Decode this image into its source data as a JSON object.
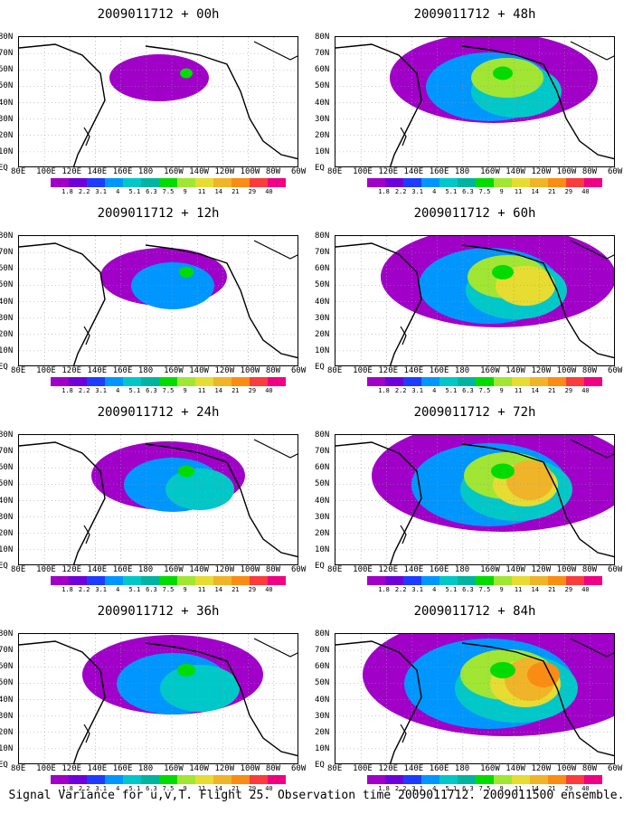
{
  "panels": [
    {
      "title": "2009011712 + 00h",
      "col": 0,
      "row": 0,
      "level": 1
    },
    {
      "title": "2009011712 + 48h",
      "col": 1,
      "row": 0,
      "level": 5
    },
    {
      "title": "2009011712 + 12h",
      "col": 0,
      "row": 1,
      "level": 2
    },
    {
      "title": "2009011712 + 60h",
      "col": 1,
      "row": 1,
      "level": 6
    },
    {
      "title": "2009011712 + 24h",
      "col": 0,
      "row": 2,
      "level": 3
    },
    {
      "title": "2009011712 + 72h",
      "col": 1,
      "row": 2,
      "level": 7
    },
    {
      "title": "2009011712 + 36h",
      "col": 0,
      "row": 3,
      "level": 4
    },
    {
      "title": "2009011712 + 84h",
      "col": 1,
      "row": 3,
      "level": 8
    }
  ],
  "lat_labels": [
    "80N",
    "70N",
    "60N",
    "50N",
    "40N",
    "30N",
    "20N",
    "10N",
    "EQ"
  ],
  "lon_labels": [
    "80E",
    "100E",
    "120E",
    "140E",
    "160E",
    "180",
    "160W",
    "140W",
    "120W",
    "100W",
    "80W",
    "60W"
  ],
  "colorbar": {
    "labels": [
      "1.8",
      "2.2",
      "3.1",
      "4",
      "5.1",
      "6.3",
      "7.5",
      "9",
      "11",
      "14",
      "21",
      "29",
      "40"
    ],
    "colors": [
      "#a000c8",
      "#6e00dc",
      "#1e3cff",
      "#0096ff",
      "#00c8c8",
      "#00b4a0",
      "#00dc00",
      "#a0e632",
      "#e6dc32",
      "#f0b428",
      "#fa8c14",
      "#fa3c3c",
      "#f00082"
    ]
  },
  "footer": "Signal Variance for u,v,T. Flight 25. Observation time 2009011712. 2009011500 ensemble."
}
